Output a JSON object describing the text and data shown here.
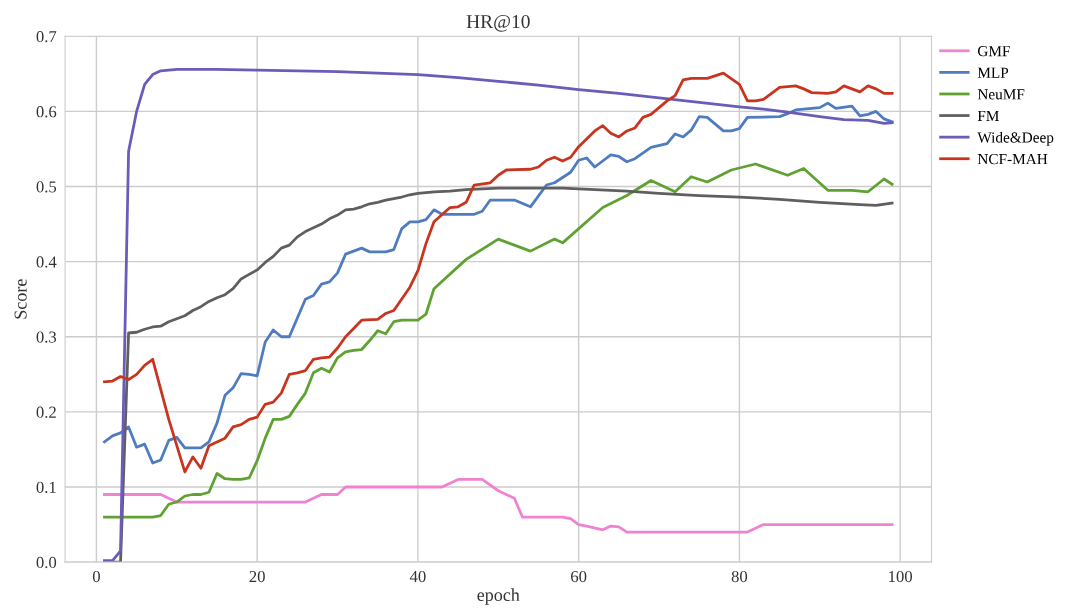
{
  "chart_data": {
    "type": "line",
    "title": "HR@10",
    "xlabel": "epoch",
    "ylabel": "Score",
    "xlim": [
      -3.9,
      103.9
    ],
    "ylim": [
      0,
      0.7
    ],
    "xticks": [
      0,
      20,
      40,
      60,
      80,
      100
    ],
    "yticks": [
      {
        "value": 0,
        "label": "0.0"
      },
      0.1,
      0.2,
      0.3,
      0.4,
      0.5,
      0.6,
      0.7
    ],
    "grid": true,
    "legend": "top right",
    "marker": "none",
    "line_style": "solid",
    "series": [
      {
        "name": "GMF",
        "color": "#f082d2",
        "x": [
          1,
          8,
          10,
          12,
          26,
          28,
          30,
          31,
          43,
          45,
          48,
          50,
          52,
          53,
          58,
          59,
          60,
          61,
          63,
          64,
          65,
          66,
          67,
          80,
          81,
          82,
          83,
          99
        ],
        "values": [
          0.09,
          0.09,
          0.08,
          0.08,
          0.08,
          0.09,
          0.09,
          0.1,
          0.1,
          0.11,
          0.11,
          0.095,
          0.085,
          0.06,
          0.06,
          0.058,
          0.05,
          0.048,
          0.043,
          0.048,
          0.047,
          0.04,
          0.04,
          0.04,
          0.04,
          0.045,
          0.05,
          0.05
        ]
      },
      {
        "name": "MLP",
        "color": "#4f7cc0",
        "x": [
          1,
          2,
          3,
          4,
          5,
          6,
          7,
          8,
          9,
          10,
          11,
          12,
          13,
          14,
          15,
          16,
          17,
          18,
          19,
          20,
          21,
          22,
          23,
          24,
          25,
          26,
          27,
          28,
          29,
          30,
          31,
          32,
          33,
          34,
          35,
          36,
          37,
          38,
          39,
          40,
          41,
          42,
          43,
          47,
          48,
          49,
          52,
          54,
          56,
          57,
          59,
          60,
          61,
          62,
          64,
          65,
          66,
          67,
          69,
          71,
          72,
          73,
          74,
          75,
          76,
          78,
          79,
          80,
          81,
          85,
          86,
          87,
          90,
          91,
          92,
          94,
          95,
          96,
          97,
          98,
          99
        ],
        "values": [
          0.16,
          0.168,
          0.172,
          0.18,
          0.153,
          0.157,
          0.132,
          0.136,
          0.162,
          0.166,
          0.152,
          0.152,
          0.152,
          0.16,
          0.185,
          0.222,
          0.232,
          0.251,
          0.25,
          0.248,
          0.293,
          0.309,
          0.3,
          0.3,
          0.325,
          0.35,
          0.355,
          0.37,
          0.373,
          0.385,
          0.41,
          0.414,
          0.418,
          0.413,
          0.413,
          0.413,
          0.416,
          0.444,
          0.453,
          0.453,
          0.456,
          0.469,
          0.463,
          0.463,
          0.467,
          0.482,
          0.482,
          0.473,
          0.502,
          0.505,
          0.519,
          0.535,
          0.538,
          0.526,
          0.542,
          0.54,
          0.533,
          0.537,
          0.552,
          0.557,
          0.57,
          0.566,
          0.575,
          0.593,
          0.592,
          0.574,
          0.574,
          0.577,
          0.592,
          0.593,
          0.597,
          0.602,
          0.605,
          0.611,
          0.604,
          0.607,
          0.594,
          0.596,
          0.6,
          0.59,
          0.586
        ]
      },
      {
        "name": "NeuMF",
        "color": "#5fa232",
        "x": [
          1,
          7,
          8,
          9,
          10,
          11,
          12,
          13,
          14,
          15,
          16,
          17,
          18,
          19,
          20,
          21,
          22,
          23,
          24,
          25,
          26,
          27,
          28,
          29,
          30,
          31,
          32,
          33,
          34,
          35,
          36,
          37,
          38,
          40,
          41,
          42,
          46,
          50,
          54,
          57,
          58,
          63,
          66,
          69,
          72,
          74,
          76,
          79,
          82,
          86,
          88,
          91,
          94,
          96,
          98,
          99
        ],
        "values": [
          0.06,
          0.06,
          0.062,
          0.077,
          0.08,
          0.088,
          0.09,
          0.09,
          0.093,
          0.118,
          0.111,
          0.11,
          0.11,
          0.112,
          0.135,
          0.165,
          0.19,
          0.19,
          0.194,
          0.21,
          0.225,
          0.252,
          0.258,
          0.253,
          0.272,
          0.28,
          0.282,
          0.283,
          0.295,
          0.308,
          0.304,
          0.32,
          0.322,
          0.322,
          0.33,
          0.364,
          0.403,
          0.43,
          0.414,
          0.43,
          0.425,
          0.472,
          0.488,
          0.508,
          0.493,
          0.513,
          0.506,
          0.522,
          0.53,
          0.515,
          0.524,
          0.495,
          0.495,
          0.493,
          0.51,
          0.503
        ]
      },
      {
        "name": "FM",
        "color": "#5f5f5f",
        "x": [
          1,
          3,
          4,
          5,
          6,
          7,
          8,
          9,
          10,
          11,
          12,
          13,
          14,
          15,
          16,
          17,
          18,
          19,
          20,
          21,
          22,
          23,
          24,
          25,
          26,
          27,
          28,
          29,
          30,
          31,
          32,
          33,
          34,
          35,
          36,
          37,
          38,
          39,
          40,
          42,
          44,
          46,
          50,
          58,
          62,
          66,
          70,
          75,
          80,
          85,
          90,
          95,
          97,
          99
        ],
        "values": [
          0,
          0,
          0.305,
          0.306,
          0.31,
          0.313,
          0.314,
          0.32,
          0.324,
          0.328,
          0.335,
          0.34,
          0.347,
          0.352,
          0.356,
          0.364,
          0.377,
          0.383,
          0.389,
          0.399,
          0.407,
          0.418,
          0.422,
          0.433,
          0.44,
          0.445,
          0.45,
          0.457,
          0.462,
          0.469,
          0.47,
          0.473,
          0.477,
          0.479,
          0.482,
          0.484,
          0.486,
          0.489,
          0.491,
          0.493,
          0.494,
          0.496,
          0.498,
          0.498,
          0.496,
          0.494,
          0.491,
          0.488,
          0.486,
          0.483,
          0.479,
          0.476,
          0.475,
          0.478
        ]
      },
      {
        "name": "Wide&Deep",
        "color": "#6a5cb8",
        "x": [
          1,
          2,
          3,
          4,
          5,
          6,
          7,
          8,
          9,
          10,
          15,
          20,
          30,
          40,
          45,
          50,
          55,
          60,
          65,
          70,
          75,
          80,
          83,
          86,
          90,
          93,
          96,
          98,
          99
        ],
        "values": [
          0.002,
          0.002,
          0.015,
          0.547,
          0.6,
          0.636,
          0.649,
          0.654,
          0.655,
          0.656,
          0.656,
          0.655,
          0.653,
          0.649,
          0.645,
          0.64,
          0.635,
          0.629,
          0.624,
          0.618,
          0.612,
          0.606,
          0.603,
          0.599,
          0.593,
          0.589,
          0.588,
          0.584,
          0.585
        ]
      },
      {
        "name": "NCF-MAH",
        "color": "#c8351f",
        "x": [
          1,
          2,
          3,
          4,
          5,
          6,
          7,
          8,
          9,
          10,
          11,
          12,
          13,
          14,
          15,
          16,
          17,
          18,
          19,
          20,
          21,
          22,
          23,
          24,
          25,
          26,
          27,
          28,
          29,
          30,
          31,
          33,
          35,
          36,
          37,
          39,
          40,
          41,
          42,
          44,
          45,
          46,
          47,
          49,
          50,
          51,
          54,
          55,
          56,
          57,
          58,
          59,
          60,
          62,
          63,
          64,
          65,
          66,
          67,
          68,
          69,
          71,
          72,
          73,
          74,
          76,
          78,
          80,
          81,
          82,
          83,
          85,
          87,
          88,
          89,
          91,
          92,
          93,
          95,
          96,
          97,
          98,
          99
        ],
        "values": [
          0.24,
          0.241,
          0.247,
          0.243,
          0.25,
          0.262,
          0.27,
          0.23,
          0.19,
          0.155,
          0.12,
          0.14,
          0.125,
          0.155,
          0.16,
          0.165,
          0.18,
          0.183,
          0.19,
          0.193,
          0.21,
          0.213,
          0.225,
          0.25,
          0.252,
          0.255,
          0.27,
          0.272,
          0.273,
          0.285,
          0.3,
          0.322,
          0.323,
          0.331,
          0.335,
          0.366,
          0.388,
          0.424,
          0.453,
          0.472,
          0.473,
          0.479,
          0.502,
          0.505,
          0.515,
          0.522,
          0.523,
          0.526,
          0.535,
          0.539,
          0.534,
          0.539,
          0.553,
          0.574,
          0.581,
          0.571,
          0.566,
          0.574,
          0.578,
          0.592,
          0.596,
          0.614,
          0.621,
          0.642,
          0.644,
          0.644,
          0.651,
          0.636,
          0.614,
          0.614,
          0.616,
          0.632,
          0.634,
          0.63,
          0.625,
          0.624,
          0.626,
          0.634,
          0.626,
          0.634,
          0.63,
          0.624,
          0.624
        ]
      }
    ]
  }
}
